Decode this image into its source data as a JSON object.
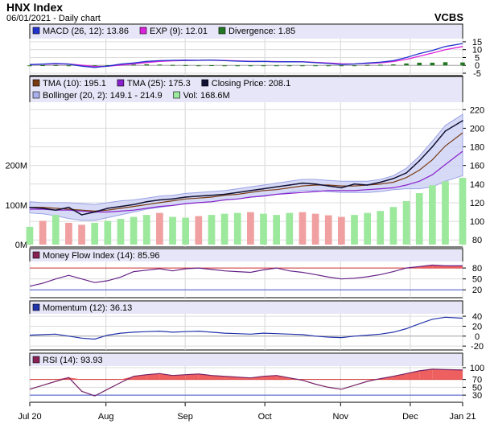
{
  "header": {
    "title": "HNX Index",
    "subtitle": "06/01/2021 - Daily chart",
    "brand": "VCBS"
  },
  "x_axis": {
    "labels": [
      "Jul 20",
      "Aug",
      "Sep",
      "Oct",
      "Nov",
      "Dec",
      "Jan 21"
    ],
    "positions": [
      0,
      0.176,
      0.359,
      0.543,
      0.718,
      0.879,
      1.0
    ]
  },
  "chart_data": [
    {
      "type": "line",
      "panel": "macd",
      "legend": [
        {
          "label": "MACD (26, 12): 13.86",
          "color": "#2233cc"
        },
        {
          "label": "EXP (9): 12.01",
          "color": "#dd22dd"
        },
        {
          "label": "Divergence: 1.85",
          "color": "#227722"
        }
      ],
      "ylim": [
        -5,
        17
      ],
      "yticks": [
        15,
        10,
        5,
        0,
        -5
      ],
      "x": [
        0,
        0.03,
        0.06,
        0.09,
        0.12,
        0.15,
        0.18,
        0.21,
        0.24,
        0.27,
        0.3,
        0.33,
        0.36,
        0.39,
        0.42,
        0.45,
        0.48,
        0.51,
        0.54,
        0.57,
        0.6,
        0.63,
        0.66,
        0.69,
        0.72,
        0.75,
        0.78,
        0.81,
        0.84,
        0.87,
        0.9,
        0.93,
        0.96,
        1.0
      ],
      "series": [
        {
          "name": "MACD (26, 12)",
          "color": "#2233cc",
          "values": [
            0.5,
            0.8,
            1.2,
            0.8,
            -0.5,
            -1.3,
            -0.5,
            0.8,
            1.5,
            2.5,
            3.0,
            3.2,
            3.3,
            3.2,
            3.4,
            3.0,
            2.7,
            2.4,
            2.5,
            2.2,
            2.3,
            2.2,
            1.7,
            1.2,
            0.6,
            0.9,
            1.5,
            2.0,
            3.0,
            5.0,
            7.5,
            9.5,
            12.0,
            13.86
          ]
        },
        {
          "name": "EXP (9)",
          "color": "#dd22dd",
          "values": [
            0.6,
            0.7,
            1.0,
            0.9,
            0.1,
            -0.7,
            -0.6,
            0.2,
            1.0,
            1.8,
            2.5,
            2.9,
            3.1,
            3.2,
            3.3,
            3.1,
            2.9,
            2.6,
            2.5,
            2.4,
            2.3,
            2.3,
            1.9,
            1.5,
            1.0,
            0.9,
            1.2,
            1.6,
            2.4,
            3.8,
            5.8,
            7.8,
            10.0,
            12.01
          ]
        },
        {
          "name": "Divergence",
          "color": "#227722",
          "type": "bar",
          "values": [
            -0.1,
            0.1,
            0.2,
            -0.1,
            -0.6,
            -0.6,
            0.1,
            0.6,
            0.5,
            0.7,
            0.5,
            0.3,
            0.2,
            0.0,
            0.1,
            -0.1,
            -0.2,
            -0.2,
            0.0,
            -0.2,
            0.0,
            -0.1,
            -0.2,
            -0.3,
            -0.4,
            0.0,
            0.3,
            0.4,
            0.6,
            1.2,
            1.7,
            1.7,
            2.0,
            1.85
          ]
        }
      ]
    },
    {
      "type": "line",
      "panel": "price",
      "legend": [
        {
          "label": "TMA (10): 195.1",
          "color": "#7a3b12"
        },
        {
          "label": "TMA (25): 175.3",
          "color": "#8822cc"
        },
        {
          "label": "Closing Price: 208.1",
          "color": "#111133"
        },
        {
          "label": "Bollinger (20, 2): 149.1 - 214.9",
          "color": "#aab0ee"
        },
        {
          "label": "Vol: 168.6M",
          "color": "#9ce89c"
        }
      ],
      "ylim": [
        75,
        228
      ],
      "yticks": [
        220,
        200,
        180,
        160,
        140,
        120,
        100,
        80
      ],
      "vol_ylim": [
        0,
        360
      ],
      "vol_ticks": [
        "0M",
        "100M",
        "200M"
      ],
      "vol_tick_values": [
        0,
        100,
        200
      ],
      "x": [
        0,
        0.03,
        0.06,
        0.09,
        0.12,
        0.15,
        0.18,
        0.21,
        0.24,
        0.27,
        0.3,
        0.33,
        0.36,
        0.39,
        0.42,
        0.45,
        0.48,
        0.51,
        0.54,
        0.57,
        0.6,
        0.63,
        0.66,
        0.69,
        0.72,
        0.75,
        0.78,
        0.81,
        0.84,
        0.87,
        0.9,
        0.93,
        0.96,
        1.0
      ],
      "series": [
        {
          "name": "Closing Price",
          "color": "#111133",
          "values": [
            115,
            114,
            112,
            115,
            107,
            110,
            114,
            116,
            118,
            121,
            123,
            124,
            126,
            127,
            128,
            129,
            131,
            133,
            135,
            137,
            139,
            141,
            140,
            138,
            136,
            140,
            139,
            142,
            146,
            152,
            165,
            180,
            197,
            208.1
          ]
        },
        {
          "name": "TMA (10)",
          "color": "#7a3b12",
          "values": [
            115,
            115,
            114,
            113,
            112,
            111,
            112,
            114,
            116,
            118,
            120,
            122,
            124,
            125,
            126,
            128,
            129,
            131,
            133,
            134,
            136,
            138,
            139,
            139,
            138,
            138,
            139,
            140,
            142,
            147,
            155,
            166,
            181,
            195.1
          ]
        },
        {
          "name": "TMA (25)",
          "color": "#8822cc",
          "values": [
            113,
            113,
            112,
            112,
            111,
            110,
            110,
            111,
            112,
            114,
            116,
            117,
            119,
            120,
            121,
            123,
            124,
            126,
            127,
            129,
            130,
            131,
            132,
            133,
            133,
            133,
            134,
            135,
            136,
            139,
            143,
            150,
            161,
            175.3
          ]
        },
        {
          "name": "Bollinger upper",
          "color": "#aab0ee",
          "values": [
            121,
            120,
            120,
            120,
            119,
            118,
            120,
            122,
            123,
            125,
            127,
            128,
            130,
            131,
            132,
            133,
            135,
            137,
            139,
            141,
            143,
            145,
            145,
            144,
            143,
            143,
            143,
            145,
            149,
            157,
            170,
            186,
            203,
            214.9
          ]
        },
        {
          "name": "Bollinger lower",
          "color": "#aab0ee",
          "values": [
            109,
            108,
            106,
            103,
            101,
            101,
            104,
            107,
            110,
            113,
            115,
            117,
            119,
            120,
            121,
            123,
            124,
            126,
            128,
            129,
            131,
            133,
            133,
            132,
            131,
            131,
            131,
            132,
            134,
            135,
            135,
            137,
            143,
            149.1
          ]
        }
      ],
      "volume": [
        45,
        60,
        75,
        55,
        50,
        55,
        60,
        65,
        70,
        75,
        80,
        70,
        68,
        72,
        75,
        78,
        80,
        82,
        78,
        75,
        80,
        82,
        78,
        74,
        70,
        75,
        80,
        85,
        95,
        110,
        130,
        150,
        160,
        168.6
      ],
      "volume_up": [
        true,
        false,
        true,
        false,
        false,
        true,
        true,
        true,
        true,
        true,
        false,
        true,
        true,
        false,
        true,
        true,
        true,
        false,
        true,
        true,
        true,
        false,
        false,
        false,
        false,
        true,
        true,
        true,
        true,
        true,
        true,
        true,
        true,
        true
      ]
    },
    {
      "type": "line",
      "panel": "mfi",
      "legend": [
        {
          "label": "Money Flow Index (14): 85.96",
          "color": "#882255"
        }
      ],
      "ylim": [
        5,
        98
      ],
      "yticks": [
        80,
        50,
        20
      ],
      "threshold_high": 80,
      "threshold_low": 20,
      "x": [
        0,
        0.03,
        0.06,
        0.09,
        0.12,
        0.15,
        0.18,
        0.21,
        0.24,
        0.27,
        0.3,
        0.33,
        0.36,
        0.39,
        0.42,
        0.45,
        0.48,
        0.51,
        0.54,
        0.57,
        0.6,
        0.63,
        0.66,
        0.69,
        0.72,
        0.75,
        0.78,
        0.81,
        0.84,
        0.87,
        0.9,
        0.93,
        0.96,
        1.0
      ],
      "series": [
        {
          "name": "Money Flow Index (14)",
          "color": "#662288",
          "values": [
            30,
            38,
            50,
            60,
            50,
            40,
            45,
            55,
            70,
            74,
            78,
            72,
            78,
            80,
            76,
            72,
            70,
            68,
            75,
            80,
            72,
            68,
            62,
            55,
            50,
            52,
            56,
            62,
            70,
            80,
            84,
            88,
            86,
            85.96
          ]
        }
      ]
    },
    {
      "type": "line",
      "panel": "momentum",
      "legend": [
        {
          "label": "Momentum (12): 36.13",
          "color": "#2233aa"
        }
      ],
      "ylim": [
        -23,
        45
      ],
      "yticks": [
        40,
        20,
        0,
        -20
      ],
      "x": [
        0,
        0.03,
        0.06,
        0.09,
        0.12,
        0.15,
        0.18,
        0.21,
        0.24,
        0.27,
        0.3,
        0.33,
        0.36,
        0.39,
        0.42,
        0.45,
        0.48,
        0.51,
        0.54,
        0.57,
        0.6,
        0.63,
        0.66,
        0.69,
        0.72,
        0.75,
        0.78,
        0.81,
        0.84,
        0.87,
        0.9,
        0.93,
        0.96,
        1.0
      ],
      "series": [
        {
          "name": "Momentum (12)",
          "color": "#2233aa",
          "values": [
            2,
            3,
            4,
            0,
            -4,
            -6,
            2,
            6,
            8,
            9,
            10,
            8,
            9,
            10,
            8,
            6,
            5,
            4,
            6,
            5,
            4,
            3,
            0,
            -2,
            -3,
            0,
            2,
            4,
            8,
            15,
            25,
            34,
            38,
            36.13
          ]
        }
      ]
    },
    {
      "type": "line",
      "panel": "rsi",
      "legend": [
        {
          "label": "RSI (14): 93.93",
          "color": "#882255"
        }
      ],
      "ylim": [
        18,
        104
      ],
      "yticks": [
        100,
        70,
        50,
        30
      ],
      "threshold_high": 70,
      "threshold_low": 30,
      "x": [
        0,
        0.03,
        0.06,
        0.09,
        0.12,
        0.15,
        0.18,
        0.21,
        0.24,
        0.27,
        0.3,
        0.33,
        0.36,
        0.39,
        0.42,
        0.45,
        0.48,
        0.51,
        0.54,
        0.57,
        0.6,
        0.63,
        0.66,
        0.69,
        0.72,
        0.75,
        0.78,
        0.81,
        0.84,
        0.87,
        0.9,
        0.93,
        0.96,
        1.0
      ],
      "series": [
        {
          "name": "RSI (14)",
          "color": "#772266",
          "values": [
            45,
            55,
            65,
            75,
            40,
            28,
            45,
            62,
            78,
            82,
            85,
            80,
            82,
            84,
            80,
            78,
            76,
            74,
            78,
            80,
            74,
            68,
            58,
            50,
            45,
            55,
            65,
            72,
            78,
            85,
            92,
            96,
            95,
            93.93
          ]
        }
      ]
    }
  ]
}
